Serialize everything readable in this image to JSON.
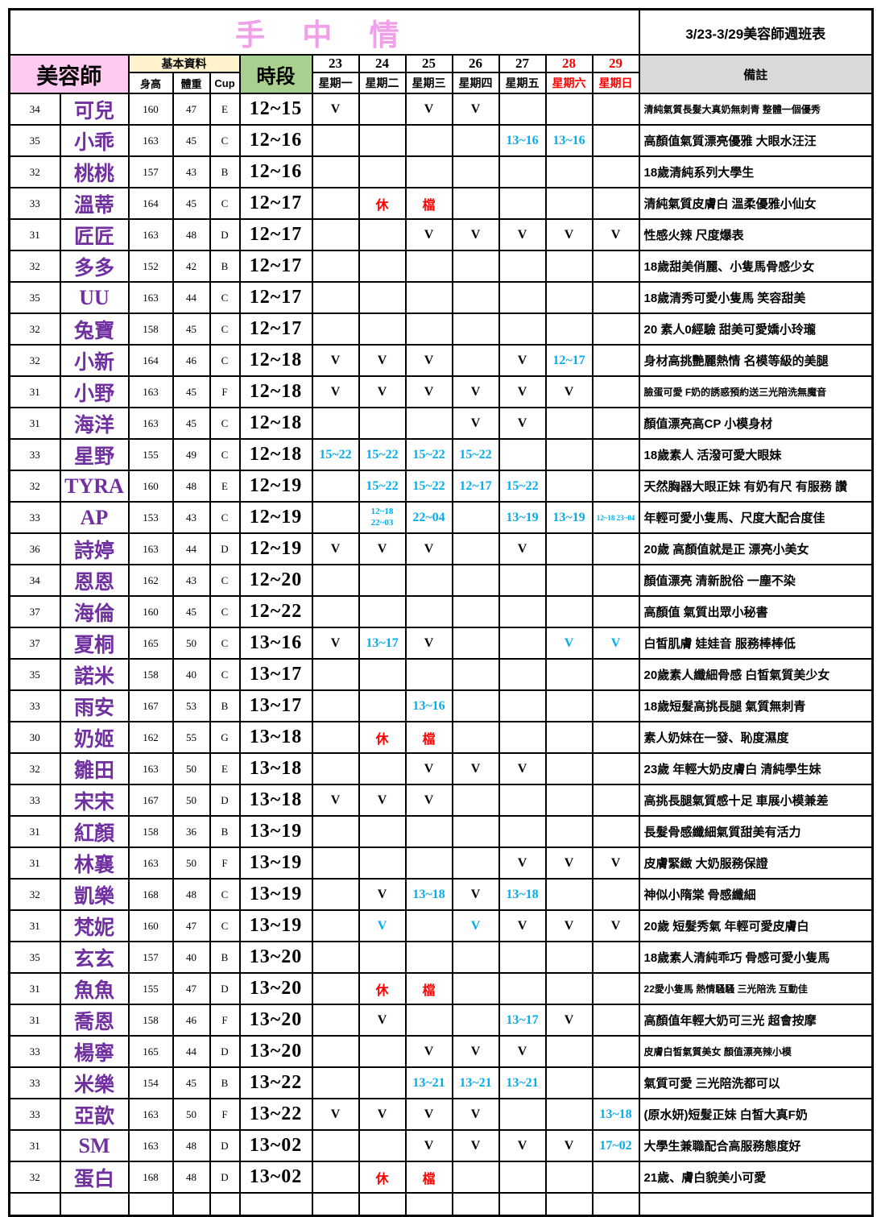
{
  "title": {
    "main": "手 中 情",
    "right": "3/23-3/29美容師週班表"
  },
  "colors": {
    "title_pink": "#F0A0E8",
    "name_purple": "#7030A0",
    "schedule_blue": "#00AEEF",
    "alert_red": "#FF0000",
    "beautician_header_bg": "#FFC9F2",
    "basic_header_bg": "#FFF2CC",
    "slot_header_bg": "#A9D08E",
    "remark_header_bg": "#D9D9D9"
  },
  "header": {
    "beautician": "美容師",
    "basic_info": "基本資料",
    "height": "身高",
    "weight": "體重",
    "cup": "Cup",
    "time_slot": "時段",
    "remarks": "備註",
    "days": [
      {
        "date": "23",
        "day": "星期一",
        "red": false
      },
      {
        "date": "24",
        "day": "星期二",
        "red": false
      },
      {
        "date": "25",
        "day": "星期三",
        "red": false
      },
      {
        "date": "26",
        "day": "星期四",
        "red": false
      },
      {
        "date": "27",
        "day": "星期五",
        "red": false
      },
      {
        "date": "28",
        "day": "星期六",
        "red": true
      },
      {
        "date": "29",
        "day": "星期日",
        "red": true
      }
    ]
  },
  "rows": [
    {
      "num": "34",
      "name": "可兒",
      "h": "160",
      "w": "47",
      "cup": "E",
      "slot": "12~15",
      "days": [
        {
          "t": "V"
        },
        null,
        {
          "t": "V"
        },
        {
          "t": "V"
        },
        null,
        null,
        null
      ],
      "remark": "清純氣質長髮大真奶無刺青 整體一個優秀",
      "rs": "sm"
    },
    {
      "num": "35",
      "name": "小乖",
      "h": "163",
      "w": "45",
      "cup": "C",
      "slot": "12~16",
      "days": [
        null,
        null,
        null,
        null,
        {
          "t": "13~16",
          "c": "blue"
        },
        {
          "t": "13~16",
          "c": "blue"
        },
        null
      ],
      "remark": "高顏值氣質漂亮優雅 大眼水汪汪"
    },
    {
      "num": "32",
      "name": "桃桃",
      "h": "157",
      "w": "43",
      "cup": "B",
      "slot": "12~16",
      "days": [
        null,
        null,
        null,
        null,
        null,
        null,
        null
      ],
      "remark": "18歲清純系列大學生"
    },
    {
      "num": "33",
      "name": "溫蒂",
      "h": "164",
      "w": "45",
      "cup": "C",
      "slot": "12~17",
      "days": [
        null,
        {
          "t": "休",
          "c": "red"
        },
        {
          "t": "檔",
          "c": "red"
        },
        null,
        null,
        null,
        null
      ],
      "remark": "清純氣質皮膚白 溫柔優雅小仙女"
    },
    {
      "num": "31",
      "name": "匠匠",
      "h": "163",
      "w": "48",
      "cup": "D",
      "slot": "12~17",
      "days": [
        null,
        null,
        {
          "t": "V"
        },
        {
          "t": "V"
        },
        {
          "t": "V"
        },
        {
          "t": "V"
        },
        {
          "t": "V"
        }
      ],
      "remark": "性感火辣 尺度爆表"
    },
    {
      "num": "32",
      "name": "多多",
      "h": "152",
      "w": "42",
      "cup": "B",
      "slot": "12~17",
      "days": [
        null,
        null,
        null,
        null,
        null,
        null,
        null
      ],
      "remark": "18歲甜美俏麗、小隻馬骨感少女"
    },
    {
      "num": "35",
      "name": "UU",
      "latin": true,
      "h": "163",
      "w": "44",
      "cup": "C",
      "slot": "12~17",
      "days": [
        null,
        null,
        null,
        null,
        null,
        null,
        null
      ],
      "remark": "18歲清秀可愛小隻馬 笑容甜美"
    },
    {
      "num": "32",
      "name": "兔寶",
      "h": "158",
      "w": "45",
      "cup": "C",
      "slot": "12~17",
      "days": [
        null,
        null,
        null,
        null,
        null,
        null,
        null
      ],
      "remark": "20 素人0經驗 甜美可愛嬌小玲瓏"
    },
    {
      "num": "32",
      "name": "小新",
      "h": "164",
      "w": "46",
      "cup": "C",
      "slot": "12~18",
      "days": [
        {
          "t": "V"
        },
        {
          "t": "V"
        },
        {
          "t": "V"
        },
        null,
        {
          "t": "V"
        },
        {
          "t": "12~17",
          "c": "blue"
        },
        null
      ],
      "remark": "身材高挑艷麗熱情 名模等級的美腿"
    },
    {
      "num": "31",
      "name": "小野",
      "h": "163",
      "w": "45",
      "cup": "F",
      "slot": "12~18",
      "days": [
        {
          "t": "V"
        },
        {
          "t": "V"
        },
        {
          "t": "V"
        },
        {
          "t": "V"
        },
        {
          "t": "V"
        },
        {
          "t": "V"
        },
        null
      ],
      "remark": "臉蛋可愛 F奶的誘惑預約送三光陪洗無魔音",
      "rs": "sm"
    },
    {
      "num": "31",
      "name": "海洋",
      "h": "163",
      "w": "45",
      "cup": "C",
      "slot": "12~18",
      "days": [
        null,
        null,
        null,
        {
          "t": "V"
        },
        {
          "t": "V"
        },
        null,
        null
      ],
      "remark": "顏值漂亮高CP 小模身材"
    },
    {
      "num": "33",
      "name": "星野",
      "h": "155",
      "w": "49",
      "cup": "C",
      "slot": "12~18",
      "days": [
        {
          "t": "15~22",
          "c": "blue"
        },
        {
          "t": "15~22",
          "c": "blue"
        },
        {
          "t": "15~22",
          "c": "blue"
        },
        {
          "t": "15~22",
          "c": "blue"
        },
        null,
        null,
        null
      ],
      "remark": "18歲素人 活潑可愛大眼妹"
    },
    {
      "num": "32",
      "name": "TYRA",
      "latin": true,
      "h": "160",
      "w": "48",
      "cup": "E",
      "slot": "12~19",
      "days": [
        null,
        {
          "t": "15~22",
          "c": "blue"
        },
        {
          "t": "15~22",
          "c": "blue"
        },
        {
          "t": "12~17",
          "c": "blue"
        },
        {
          "t": "15~22",
          "c": "blue"
        },
        null,
        null
      ],
      "remark": "天然胸器大眼正妹 有奶有尺 有服務 讚"
    },
    {
      "num": "33",
      "name": "AP",
      "latin": true,
      "h": "153",
      "w": "43",
      "cup": "C",
      "slot": "12~19",
      "days": [
        null,
        {
          "t": "12~18\n22~03",
          "c": "blue",
          "s": "stack"
        },
        {
          "t": "22~04",
          "c": "blue"
        },
        null,
        {
          "t": "13~19",
          "c": "blue"
        },
        {
          "t": "13~19",
          "c": "blue"
        },
        {
          "t": "12~18 23~04",
          "c": "blue",
          "s": "xs"
        }
      ],
      "remark": "年輕可愛小隻馬、尺度大配合度佳"
    },
    {
      "num": "36",
      "name": "詩婷",
      "h": "163",
      "w": "44",
      "cup": "D",
      "slot": "12~19",
      "days": [
        {
          "t": "V"
        },
        {
          "t": "V"
        },
        {
          "t": "V"
        },
        null,
        {
          "t": "V"
        },
        null,
        null
      ],
      "remark": "20歲 高顏值就是正 漂亮小美女"
    },
    {
      "num": "34",
      "name": "恩恩",
      "h": "162",
      "w": "43",
      "cup": "C",
      "slot": "12~20",
      "days": [
        null,
        null,
        null,
        null,
        null,
        null,
        null
      ],
      "remark": "顏值漂亮 清新脫俗 一塵不染"
    },
    {
      "num": "37",
      "name": "海倫",
      "h": "160",
      "w": "45",
      "cup": "C",
      "slot": "12~22",
      "days": [
        null,
        null,
        null,
        null,
        null,
        null,
        null
      ],
      "remark": "高顏值 氣質出眾小秘書"
    },
    {
      "num": "37",
      "name": "夏桐",
      "h": "165",
      "w": "50",
      "cup": "C",
      "slot": "13~16",
      "days": [
        {
          "t": "V"
        },
        {
          "t": "13~17",
          "c": "blue"
        },
        {
          "t": "V"
        },
        null,
        null,
        {
          "t": "V",
          "c": "blue"
        },
        {
          "t": "V",
          "c": "blue"
        }
      ],
      "remark": "白皙肌膚 娃娃音 服務棒棒低"
    },
    {
      "num": "35",
      "name": "諾米",
      "h": "158",
      "w": "40",
      "cup": "C",
      "slot": "13~17",
      "days": [
        null,
        null,
        null,
        null,
        null,
        null,
        null
      ],
      "remark": "20歲素人纖細骨感 白皙氣質美少女"
    },
    {
      "num": "33",
      "name": "雨安",
      "h": "167",
      "w": "53",
      "cup": "B",
      "slot": "13~17",
      "days": [
        null,
        null,
        {
          "t": "13~16",
          "c": "blue"
        },
        null,
        null,
        null,
        null
      ],
      "remark": "18歲短髮高挑長腿 氣質無刺青"
    },
    {
      "num": "30",
      "name": "奶姬",
      "h": "162",
      "w": "55",
      "cup": "G",
      "slot": "13~18",
      "days": [
        null,
        {
          "t": "休",
          "c": "red"
        },
        {
          "t": "檔",
          "c": "red"
        },
        null,
        null,
        null,
        null
      ],
      "remark": "素人奶妹在一發、恥度濕度"
    },
    {
      "num": "32",
      "name": "雛田",
      "h": "163",
      "w": "50",
      "cup": "E",
      "slot": "13~18",
      "days": [
        null,
        null,
        {
          "t": "V"
        },
        {
          "t": "V"
        },
        {
          "t": "V"
        },
        null,
        null
      ],
      "remark": "23歲 年輕大奶皮膚白 清純學生妹"
    },
    {
      "num": "33",
      "name": "宋宋",
      "h": "167",
      "w": "50",
      "cup": "D",
      "slot": "13~18",
      "days": [
        {
          "t": "V"
        },
        {
          "t": "V"
        },
        {
          "t": "V"
        },
        null,
        null,
        null,
        null
      ],
      "remark": "高挑長腿氣質感十足 車展小模兼差"
    },
    {
      "num": "31",
      "name": "紅顏",
      "h": "158",
      "w": "36",
      "cup": "B",
      "slot": "13~19",
      "days": [
        null,
        null,
        null,
        null,
        null,
        null,
        null
      ],
      "remark": "長髮骨感纖細氣質甜美有活力"
    },
    {
      "num": "31",
      "name": "林襄",
      "h": "163",
      "w": "50",
      "cup": "F",
      "slot": "13~19",
      "days": [
        null,
        null,
        null,
        null,
        {
          "t": "V"
        },
        {
          "t": "V"
        },
        {
          "t": "V"
        }
      ],
      "remark": "皮膚緊緻 大奶服務保證"
    },
    {
      "num": "32",
      "name": "凱樂",
      "h": "168",
      "w": "48",
      "cup": "C",
      "slot": "13~19",
      "days": [
        null,
        {
          "t": "V"
        },
        {
          "t": "13~18",
          "c": "blue"
        },
        {
          "t": "V"
        },
        {
          "t": "13~18",
          "c": "blue"
        },
        null,
        null
      ],
      "remark": "神似小隋棠 骨感纖細"
    },
    {
      "num": "31",
      "name": "梵妮",
      "h": "160",
      "w": "47",
      "cup": "C",
      "slot": "13~19",
      "days": [
        null,
        {
          "t": "V",
          "c": "blue"
        },
        null,
        {
          "t": "V",
          "c": "blue"
        },
        {
          "t": "V"
        },
        {
          "t": "V"
        },
        {
          "t": "V"
        }
      ],
      "remark": "20歲 短髮秀氣 年輕可愛皮膚白"
    },
    {
      "num": "35",
      "name": "玄玄",
      "h": "157",
      "w": "40",
      "cup": "B",
      "slot": "13~20",
      "days": [
        null,
        null,
        null,
        null,
        null,
        null,
        null
      ],
      "remark": "18歲素人清純乖巧 骨感可愛小隻馬"
    },
    {
      "num": "31",
      "name": "魚魚",
      "h": "155",
      "w": "47",
      "cup": "D",
      "slot": "13~20",
      "days": [
        null,
        {
          "t": "休",
          "c": "red"
        },
        {
          "t": "檔",
          "c": "red"
        },
        null,
        null,
        null,
        null
      ],
      "remark": "22愛小隻馬 熱情騷騷 三光陪洗 互動佳",
      "rs": "sm"
    },
    {
      "num": "31",
      "name": "喬恩",
      "h": "158",
      "w": "46",
      "cup": "F",
      "slot": "13~20",
      "days": [
        null,
        {
          "t": "V"
        },
        null,
        null,
        {
          "t": "13~17",
          "c": "blue"
        },
        {
          "t": "V"
        },
        null
      ],
      "remark": "高顏值年輕大奶可三光 超會按摩"
    },
    {
      "num": "33",
      "name": "楊寧",
      "h": "165",
      "w": "44",
      "cup": "D",
      "slot": "13~20",
      "days": [
        null,
        null,
        {
          "t": "V"
        },
        {
          "t": "V"
        },
        {
          "t": "V"
        },
        null,
        null
      ],
      "remark": "皮膚白皙氣質美女 顏值漂亮辣小模",
      "rs": "sm"
    },
    {
      "num": "33",
      "name": "米樂",
      "h": "154",
      "w": "45",
      "cup": "B",
      "slot": "13~22",
      "days": [
        null,
        null,
        {
          "t": "13~21",
          "c": "blue"
        },
        {
          "t": "13~21",
          "c": "blue"
        },
        {
          "t": "13~21",
          "c": "blue"
        },
        null,
        null
      ],
      "remark": "氣質可愛 三光陪洗都可以"
    },
    {
      "num": "33",
      "name": "亞歆",
      "h": "163",
      "w": "50",
      "cup": "F",
      "slot": "13~22",
      "days": [
        {
          "t": "V"
        },
        {
          "t": "V"
        },
        {
          "t": "V"
        },
        {
          "t": "V"
        },
        null,
        null,
        {
          "t": "13~18",
          "c": "blue"
        }
      ],
      "remark": "(原水妍)短髮正妹 白皙大真F奶"
    },
    {
      "num": "31",
      "name": "SM",
      "latin": true,
      "h": "163",
      "w": "48",
      "cup": "D",
      "slot": "13~02",
      "days": [
        null,
        null,
        {
          "t": "V"
        },
        {
          "t": "V"
        },
        {
          "t": "V"
        },
        {
          "t": "V"
        },
        {
          "t": "17~02",
          "c": "blue"
        }
      ],
      "remark": "大學生兼職配合高服務態度好"
    },
    {
      "num": "32",
      "name": "蛋白",
      "h": "168",
      "w": "48",
      "cup": "D",
      "slot": "13~02",
      "days": [
        null,
        {
          "t": "休",
          "c": "red"
        },
        {
          "t": "檔",
          "c": "red"
        },
        null,
        null,
        null,
        null
      ],
      "remark": "21歲、膚白貌美小可愛"
    }
  ]
}
